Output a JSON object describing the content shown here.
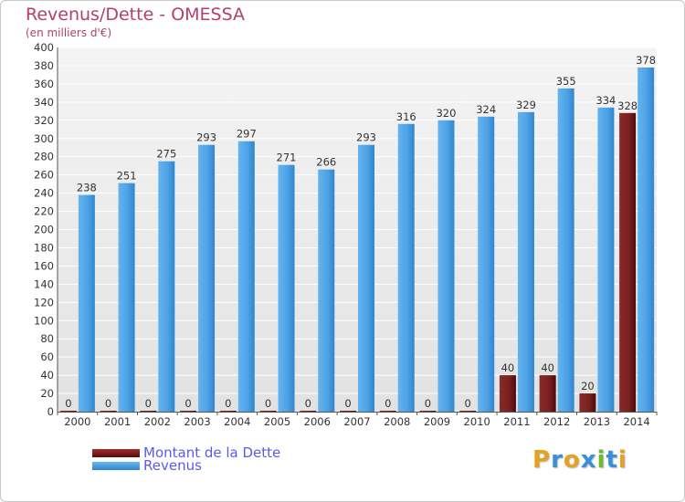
{
  "chart_data": {
    "type": "bar",
    "title": "Revenus/Dette - OMESSA",
    "subtitle": "(en milliers d'€)",
    "categories": [
      "2000",
      "2001",
      "2002",
      "2003",
      "2004",
      "2005",
      "2006",
      "2007",
      "2008",
      "2009",
      "2010",
      "2011",
      "2012",
      "2013",
      "2014"
    ],
    "series": [
      {
        "name": "Montant de la Dette",
        "color": "#7a1f1f",
        "values": [
          0,
          0,
          0,
          0,
          0,
          0,
          0,
          0,
          0,
          0,
          0,
          40,
          40,
          20,
          328
        ]
      },
      {
        "name": "Revenus",
        "color": "#4fa3e6",
        "values": [
          238,
          251,
          275,
          293,
          297,
          271,
          266,
          293,
          316,
          320,
          324,
          329,
          355,
          334,
          378
        ]
      }
    ],
    "ylim": [
      0,
      400
    ],
    "yticks": [
      0,
      20,
      40,
      60,
      80,
      100,
      120,
      140,
      160,
      180,
      200,
      220,
      240,
      260,
      280,
      300,
      320,
      340,
      360,
      380,
      400
    ],
    "grid": true,
    "legend_position": "bottom-left"
  },
  "logo": {
    "letters": [
      "P",
      "r",
      "o",
      "x",
      "i",
      "t",
      "i"
    ],
    "colors": [
      "#e8a020",
      "#3a8fd8",
      "#e8a020",
      "#3a8fd8",
      "#70b830",
      "#3a8fd8",
      "#e8a020"
    ]
  }
}
